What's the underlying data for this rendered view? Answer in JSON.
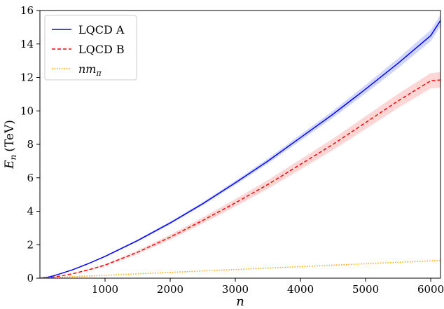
{
  "chart_data": {
    "type": "line",
    "xlabel": {
      "main": "n"
    },
    "ylabel": {
      "main": "E",
      "sub": "n",
      "unit": "(TeV)"
    },
    "xlim": [
      0,
      6150
    ],
    "ylim": [
      0,
      16
    ],
    "x_ticks": [
      1000,
      2000,
      3000,
      4000,
      5000,
      6000
    ],
    "y_ticks": [
      0,
      2,
      4,
      6,
      8,
      10,
      12,
      14,
      16
    ],
    "grid": false,
    "legend_position": "top-left",
    "series": [
      {
        "name": "LQCD A",
        "color": "#0000ff",
        "dash": "solid",
        "band": true,
        "band_color": "#aab4ff",
        "x": [
          0,
          100,
          200,
          300,
          500,
          750,
          1000,
          1500,
          2000,
          2500,
          3000,
          3500,
          4000,
          4500,
          5000,
          5500,
          6000,
          6150
        ],
        "y": [
          0,
          0.04,
          0.13,
          0.25,
          0.5,
          0.88,
          1.3,
          2.25,
          3.3,
          4.45,
          5.7,
          7.0,
          8.4,
          9.8,
          11.3,
          12.85,
          14.5,
          15.4
        ],
        "err": [
          0,
          0,
          0.01,
          0.01,
          0.02,
          0.03,
          0.04,
          0.06,
          0.08,
          0.1,
          0.12,
          0.15,
          0.18,
          0.21,
          0.25,
          0.29,
          0.33,
          0.35
        ]
      },
      {
        "name": "LQCD B",
        "color": "#ff0000",
        "dash": "dashed",
        "band": true,
        "band_color": "#ffb4b4",
        "x": [
          0,
          100,
          200,
          300,
          500,
          750,
          1000,
          1500,
          2000,
          2500,
          3000,
          3500,
          4000,
          4500,
          5000,
          5500,
          6000,
          6150
        ],
        "y": [
          0,
          0.02,
          0.06,
          0.12,
          0.26,
          0.5,
          0.78,
          1.55,
          2.45,
          3.45,
          4.5,
          5.6,
          6.8,
          8.0,
          9.3,
          10.6,
          11.8,
          11.85
        ],
        "err": [
          0,
          0,
          0.01,
          0.01,
          0.02,
          0.04,
          0.06,
          0.1,
          0.14,
          0.18,
          0.22,
          0.26,
          0.3,
          0.34,
          0.38,
          0.42,
          0.46,
          0.47
        ]
      },
      {
        "name_main": "nm",
        "name_sub": "π",
        "color": "#ffa500",
        "dash": "dotted",
        "band": false,
        "x": [
          0,
          6150
        ],
        "y": [
          0,
          1.06
        ]
      }
    ]
  }
}
